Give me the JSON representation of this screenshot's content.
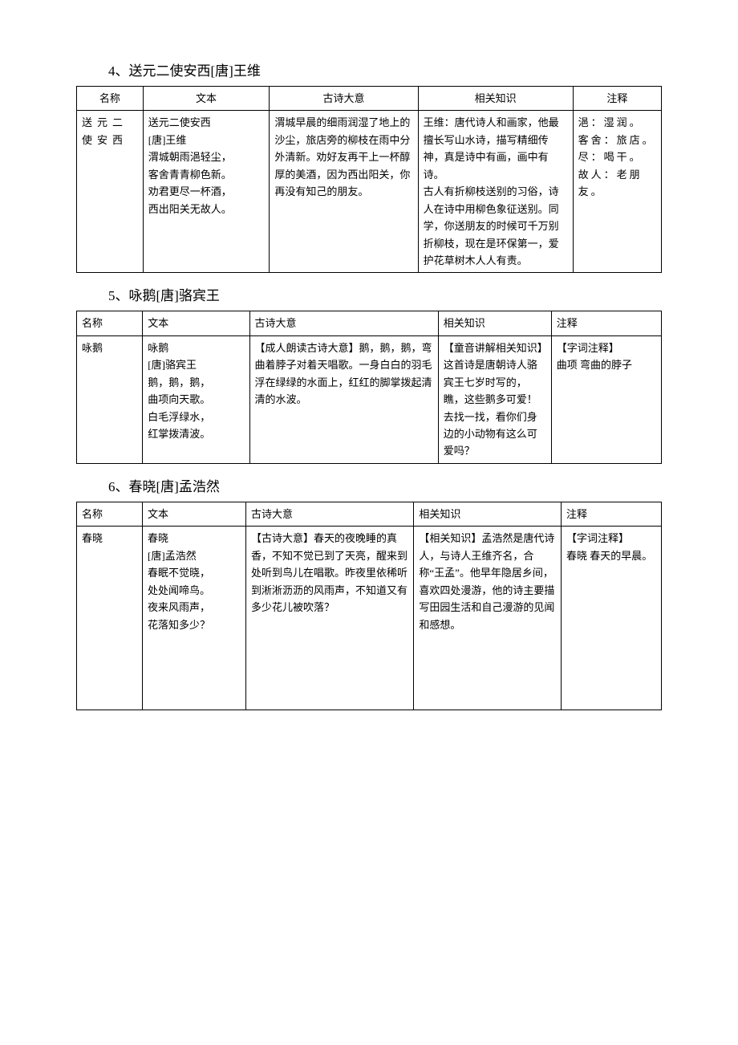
{
  "sections": [
    {
      "heading": "4、送元二使安西[唐]王维",
      "header": {
        "name": "名称",
        "text": "文本",
        "meaning": "古诗大意",
        "knowledge": "相关知识",
        "notes": "注释"
      },
      "row": {
        "name": "送元二使安西",
        "text": "送元二使安西\n[唐]王维\n渭城朝雨浥轻尘，\n客舍青青柳色新。\n劝君更尽一杯酒，\n西出阳关无故人。",
        "meaning": "渭城早晨的细雨润湿了地上的沙尘，旅店旁的柳枝在雨中分外清新。劝好友再干上一杯醇厚的美酒，因为西出阳关，你再没有知己的朋友。",
        "knowledge": "王维：唐代诗人和画家，他最擅长写山水诗，描写精细传神，真是诗中有画，画中有诗。\n古人有折柳枝送别的习俗，诗人在诗中用柳色象征送别。同学，你送朋友的时候可千万别折柳枝，现在是环保第一，爱护花草树木人人有责。",
        "notes": "浥：湿润。\n客舍：旅店。\n尽：喝干。\n故人：老朋友。"
      }
    },
    {
      "heading": "5、咏鹅[唐]骆宾王",
      "header": {
        "name": "名称",
        "text": "文本",
        "meaning": "古诗大意",
        "knowledge": "相关知识",
        "notes": "注释"
      },
      "row": {
        "name": "咏鹅",
        "text": "咏鹅\n[唐]骆宾王\n鹅，鹅，鹅，\n曲项向天歌。\n白毛浮绿水，\n红掌拨清波。",
        "meaning": "【成人朗读古诗大意】鹅，鹅，鹅，弯曲着脖子对着天唱歌。一身白白的羽毛浮在绿绿的水面上，红红的脚掌拨起清清的水波。",
        "knowledge": "【童音讲解相关知识】这首诗是唐朝诗人骆宾王七岁时写的，瞧，这些鹅多可爱！去找一找，看你们身边的小动物有这么可爱吗？",
        "notes": "【字词注释】\n曲项 弯曲的脖子"
      }
    },
    {
      "heading": "6、春晓[唐]孟浩然",
      "header": {
        "name": "名称",
        "text": "文本",
        "meaning": "古诗大意",
        "knowledge": "相关知识",
        "notes": "注释"
      },
      "row": {
        "name": "春晓",
        "text": "春晓\n[唐]孟浩然\n春眠不觉晓，\n处处闻啼鸟。\n夜来风雨声，\n花落知多少？",
        "meaning": "【古诗大意】春天的夜晚睡的真香，不知不觉已到了天亮，醒来到处听到鸟儿在唱歌。昨夜里依稀听到淅淅沥沥的风雨声，不知道又有多少花儿被吹落？",
        "knowledge": "【相关知识】孟浩然是唐代诗人，与诗人王维齐名，合称“王孟”。他早年隐居乡间，喜欢四处漫游，他的诗主要描写田园生活和自己漫游的见闻和感想。",
        "notes": "【字词注释】\n春晓 春天的早晨。"
      }
    }
  ]
}
